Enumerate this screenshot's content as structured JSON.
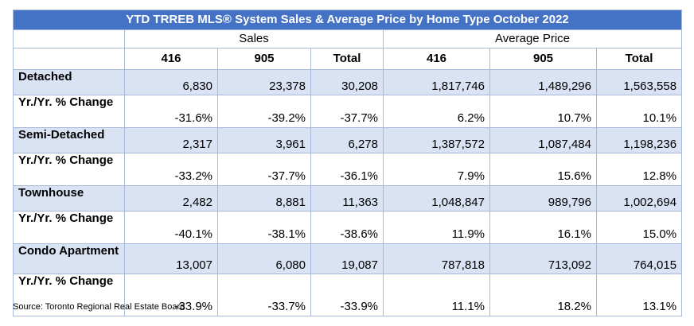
{
  "title": "YTD TRREB MLS® System Sales & Average Price by Home Type October 2022",
  "group_headers": [
    "Sales",
    "Average Price"
  ],
  "column_headers": [
    "416",
    "905",
    "Total",
    "416",
    "905",
    "Total"
  ],
  "rows": [
    {
      "label": "Detached",
      "values": [
        "6,830",
        "23,378",
        "30,208",
        "1,817,746",
        "1,489,296",
        "1,563,558"
      ]
    },
    {
      "label": "Yr./Yr. % Change",
      "values": [
        "-31.6%",
        "-39.2%",
        "-37.7%",
        "6.2%",
        "10.7%",
        "10.1%"
      ]
    },
    {
      "label": "Semi-Detached",
      "values": [
        "2,317",
        "3,961",
        "6,278",
        "1,387,572",
        "1,087,484",
        "1,198,236"
      ]
    },
    {
      "label": "Yr./Yr. % Change",
      "values": [
        "-33.2%",
        "-37.7%",
        "-36.1%",
        "7.9%",
        "15.6%",
        "12.8%"
      ]
    },
    {
      "label": "Townhouse",
      "values": [
        "2,482",
        "8,881",
        "11,363",
        "1,048,847",
        "989,796",
        "1,002,694"
      ]
    },
    {
      "label": "Yr./Yr. % Change",
      "values": [
        "-40.1%",
        "-38.1%",
        "-38.6%",
        "11.9%",
        "16.1%",
        "15.0%"
      ]
    },
    {
      "label": "Condo Apartment",
      "values": [
        "13,007",
        "6,080",
        "19,087",
        "787,818",
        "713,092",
        "764,015"
      ]
    },
    {
      "label": "Yr./Yr. % Change",
      "values": [
        "-33.9%",
        "-33.7%",
        "-33.9%",
        "11.1%",
        "18.2%",
        "13.1%"
      ]
    }
  ],
  "source": "Source: Toronto Regional Real Estate Board",
  "colors": {
    "title_bg": "#4472c4",
    "row_shade": "#dae3f3",
    "border": "#a8b8d8"
  }
}
